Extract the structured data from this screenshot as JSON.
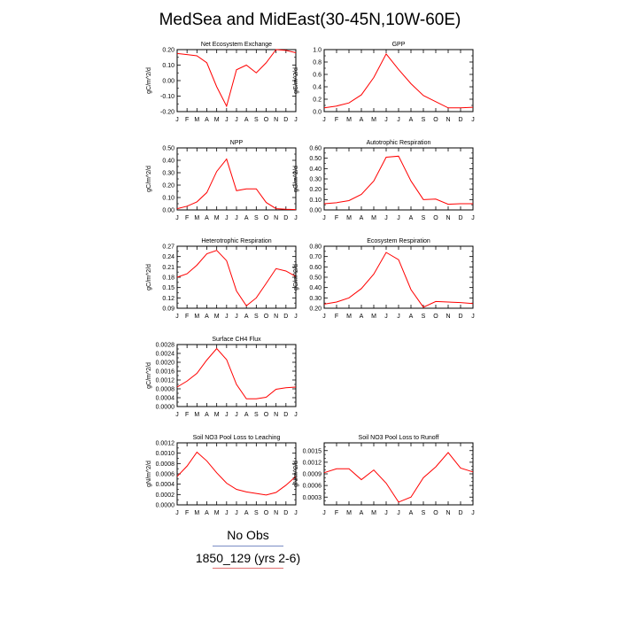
{
  "title": "MedSea and MidEast(30-45N,10W-60E)",
  "legend": {
    "obs_label": "No Obs",
    "model_label": "1850_129 (yrs 2-6)",
    "obs_color": "#7a8cc4",
    "model_color": "#ff0000"
  },
  "chart_data": [
    {
      "type": "line",
      "title": "Net Ecosystem Exchange",
      "ylabel": "gC/m^2/d",
      "x": [
        "J",
        "F",
        "M",
        "A",
        "M",
        "J",
        "J",
        "A",
        "S",
        "O",
        "N",
        "D",
        "J"
      ],
      "ylim": [
        -0.2,
        0.2
      ],
      "yticks": [
        "-0.20",
        "-0.10",
        "0.00",
        "0.10",
        "0.20"
      ],
      "yticks_minor": 2,
      "series": [
        {
          "values": [
            0.175,
            0.168,
            0.16,
            0.115,
            -0.04,
            -0.165,
            0.07,
            0.1,
            0.05,
            0.115,
            0.2,
            0.195,
            0.18
          ]
        }
      ]
    },
    {
      "type": "line",
      "title": "GPP",
      "ylabel": "gC/m^2/d",
      "x": [
        "J",
        "F",
        "M",
        "A",
        "M",
        "J",
        "J",
        "A",
        "S",
        "O",
        "N",
        "D",
        "J"
      ],
      "ylim": [
        0.0,
        1.0
      ],
      "yticks": [
        "0.0",
        "0.2",
        "0.4",
        "0.6",
        "0.8",
        "1.0"
      ],
      "yticks_minor": 2,
      "series": [
        {
          "values": [
            0.06,
            0.09,
            0.14,
            0.27,
            0.55,
            0.93,
            0.68,
            0.45,
            0.26,
            0.16,
            0.06,
            0.06,
            0.07
          ]
        }
      ]
    },
    {
      "type": "line",
      "title": "NPP",
      "ylabel": "gC/m^2/d",
      "x": [
        "J",
        "F",
        "M",
        "A",
        "M",
        "J",
        "J",
        "A",
        "S",
        "O",
        "N",
        "D",
        "J"
      ],
      "ylim": [
        0.0,
        0.5
      ],
      "yticks": [
        "0.00",
        "0.10",
        "0.20",
        "0.30",
        "0.40",
        "0.50"
      ],
      "yticks_minor": 2,
      "series": [
        {
          "values": [
            0.01,
            0.03,
            0.065,
            0.14,
            0.31,
            0.41,
            0.155,
            0.17,
            0.17,
            0.06,
            0.01,
            0.005,
            0.003
          ]
        }
      ]
    },
    {
      "type": "line",
      "title": "Autotrophic Respiration",
      "ylabel": "gC/m^2/d",
      "x": [
        "J",
        "F",
        "M",
        "A",
        "M",
        "J",
        "J",
        "A",
        "S",
        "O",
        "N",
        "D",
        "J"
      ],
      "ylim": [
        0.0,
        0.6
      ],
      "yticks": [
        "0.00",
        "0.10",
        "0.20",
        "0.30",
        "0.40",
        "0.50",
        "0.60"
      ],
      "yticks_minor": 2,
      "series": [
        {
          "values": [
            0.06,
            0.07,
            0.09,
            0.15,
            0.28,
            0.51,
            0.52,
            0.28,
            0.1,
            0.105,
            0.055,
            0.06,
            0.06
          ]
        }
      ]
    },
    {
      "type": "line",
      "title": "Heterotrophic Respiration",
      "ylabel": "gC/m^2/d",
      "x": [
        "J",
        "F",
        "M",
        "A",
        "M",
        "J",
        "J",
        "A",
        "S",
        "O",
        "N",
        "D",
        "J"
      ],
      "ylim": [
        0.09,
        0.27
      ],
      "yticks": [
        "0.09",
        "0.12",
        "0.15",
        "0.18",
        "0.21",
        "0.24",
        "0.27"
      ],
      "yticks_minor": 2,
      "series": [
        {
          "values": [
            0.18,
            0.19,
            0.215,
            0.248,
            0.258,
            0.228,
            0.14,
            0.097,
            0.12,
            0.162,
            0.205,
            0.198,
            0.182
          ]
        }
      ]
    },
    {
      "type": "line",
      "title": "Ecosystem Respiration",
      "ylabel": "gC/m^2/d",
      "x": [
        "J",
        "F",
        "M",
        "A",
        "M",
        "J",
        "J",
        "A",
        "S",
        "O",
        "N",
        "D",
        "J"
      ],
      "ylim": [
        0.2,
        0.8
      ],
      "yticks": [
        "0.20",
        "0.30",
        "0.40",
        "0.50",
        "0.60",
        "0.70",
        "0.80"
      ],
      "yticks_minor": 2,
      "series": [
        {
          "values": [
            0.24,
            0.26,
            0.3,
            0.39,
            0.53,
            0.74,
            0.67,
            0.38,
            0.21,
            0.265,
            0.26,
            0.255,
            0.245
          ]
        }
      ]
    },
    {
      "type": "line",
      "title": "Surface CH4 Flux",
      "ylabel": "gC/m^2/d",
      "x": [
        "J",
        "F",
        "M",
        "A",
        "M",
        "J",
        "J",
        "A",
        "S",
        "O",
        "N",
        "D",
        "J"
      ],
      "ylim": [
        0.0,
        0.0028
      ],
      "yticks": [
        "0.0000",
        "0.0004",
        "0.0008",
        "0.0012",
        "0.0016",
        "0.0020",
        "0.0024",
        "0.0028"
      ],
      "yticks_minor": 2,
      "series": [
        {
          "values": [
            0.00088,
            0.00115,
            0.0015,
            0.0021,
            0.00262,
            0.00212,
            0.001,
            0.00035,
            0.00035,
            0.00042,
            0.00078,
            0.00085,
            0.00088
          ]
        }
      ]
    },
    {
      "type": "line",
      "title": "Soil NO3 Pool Loss to Leaching",
      "ylabel": "gN/m^2/d",
      "x": [
        "J",
        "F",
        "M",
        "A",
        "M",
        "J",
        "J",
        "A",
        "S",
        "O",
        "N",
        "D",
        "J"
      ],
      "ylim": [
        0.0,
        0.0012
      ],
      "yticks": [
        "0.0000",
        "0.0002",
        "0.0004",
        "0.0006",
        "0.0008",
        "0.0010",
        "0.0012"
      ],
      "yticks_minor": 2,
      "series": [
        {
          "values": [
            0.00055,
            0.00075,
            0.00102,
            0.00085,
            0.00062,
            0.00042,
            0.0003,
            0.00025,
            0.00022,
            0.00019,
            0.00024,
            0.00038,
            0.00055
          ]
        }
      ]
    },
    {
      "type": "line",
      "title": "Soil NO3 Pool Loss to Runoff",
      "ylabel": "gN/m^2/d",
      "x": [
        "J",
        "F",
        "M",
        "A",
        "M",
        "J",
        "J",
        "A",
        "S",
        "O",
        "N",
        "D",
        "J"
      ],
      "ylim": [
        0.0001,
        0.0017
      ],
      "yticks": [
        "0.0003",
        "0.0006",
        "0.0009",
        "0.0012",
        "0.0015"
      ],
      "yticks_minor": 3,
      "series": [
        {
          "values": [
            0.00093,
            0.00103,
            0.00103,
            0.00075,
            0.001,
            0.00066,
            0.00017,
            0.0003,
            0.0008,
            0.00108,
            0.00145,
            0.00105,
            0.00095
          ]
        }
      ]
    }
  ]
}
